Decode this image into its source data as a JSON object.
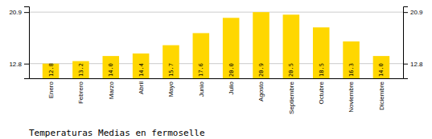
{
  "chart_data": {
    "type": "bar",
    "title": "Temperaturas Medias en fermoselle",
    "categories": [
      "Enero",
      "Febrero",
      "Marzo",
      "Abril",
      "Mayo",
      "Junio",
      "Julio",
      "Agosto",
      "Septiembre",
      "Octubre",
      "Noviembre",
      "Diciembre"
    ],
    "values": [
      12.8,
      13.2,
      14.0,
      14.4,
      15.7,
      17.6,
      20.0,
      20.9,
      20.5,
      18.5,
      16.3,
      14.0
    ],
    "value_labels": [
      "12.8",
      "13.2",
      "14.0",
      "14.4",
      "15.7",
      "17.6",
      "20.0",
      "20.9",
      "20.5",
      "18.5",
      "16.3",
      "14.0"
    ],
    "color": "#FFD700",
    "ylim": [
      10.5,
      21.8
    ],
    "yticks": [
      12.8,
      20.9
    ],
    "grid": true,
    "data_labels": true
  }
}
